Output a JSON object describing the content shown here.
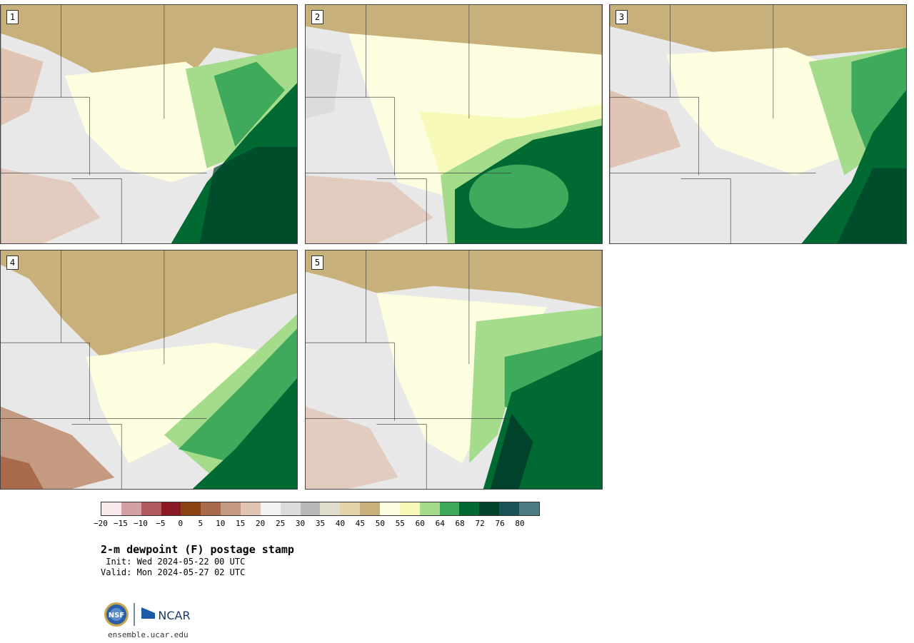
{
  "panels": [
    {
      "id": 1,
      "label": "1"
    },
    {
      "id": 2,
      "label": "2"
    },
    {
      "id": 3,
      "label": "3"
    },
    {
      "id": 4,
      "label": "4"
    },
    {
      "id": 5,
      "label": "5"
    }
  ],
  "colorbar": {
    "colors": [
      "#f5e9ea",
      "#d4a0a6",
      "#b05a60",
      "#8a1a24",
      "#8a4212",
      "#a86a4a",
      "#c49a80",
      "#e0c4b4",
      "#f2f2f2",
      "#dcdcdc",
      "#b8b8b8",
      "#e0ddcc",
      "#e4d4ac",
      "#c8b07a",
      "#fdfde0",
      "#f7f9b8",
      "#a4dc8c",
      "#40aa5c",
      "#006a32",
      "#00422a",
      "#1a5458",
      "#4c7a80"
    ],
    "ticks": [
      "−20",
      "−15",
      "−10",
      "−5",
      "0",
      "5",
      "10",
      "15",
      "20",
      "25",
      "30",
      "35",
      "40",
      "45",
      "50",
      "55",
      "60",
      "64",
      "68",
      "72",
      "76",
      "80"
    ]
  },
  "title": "2-m dewpoint (F) postage stamp",
  "init": " Init: Wed 2024-05-22 00 UTC",
  "valid": "Valid: Mon 2024-05-27 02 UTC",
  "logos": {
    "nsf": "NSF",
    "ncar": "NCAR"
  },
  "website": "ensemble.ucar.edu"
}
